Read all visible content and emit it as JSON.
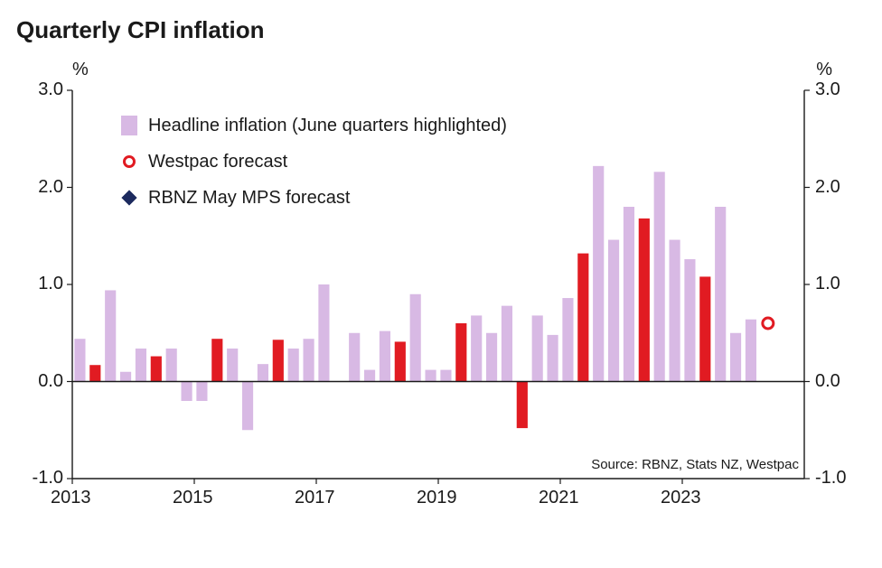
{
  "chart": {
    "title": "Quarterly CPI inflation",
    "ylabel_left": "%",
    "ylabel_right": "%",
    "ylim": [
      -1.0,
      3.0
    ],
    "yticks": [
      -1.0,
      0.0,
      1.0,
      2.0,
      3.0
    ],
    "ytick_labels": [
      "-1.0",
      "0.0",
      "1.0",
      "2.0",
      "3.0"
    ],
    "x_major_ticks": [
      2013,
      2015,
      2017,
      2019,
      2021,
      2023
    ],
    "x_range": [
      2013,
      2025
    ],
    "bar_color_normal": "#d8b9e4",
    "bar_color_highlight": "#e11b22",
    "westpac_stroke": "#e11b22",
    "westpac_fill": "#ffffff",
    "rbnz_fill": "#1c2a5e",
    "axis_color": "#1a1a1a",
    "tick_color": "#1a1a1a",
    "title_fontsize": 26,
    "tick_fontsize": 20,
    "legend_fontsize": 20,
    "bars": [
      {
        "x": 2013.0,
        "v": 0.44,
        "hl": false
      },
      {
        "x": 2013.25,
        "v": 0.17,
        "hl": true
      },
      {
        "x": 2013.5,
        "v": 0.94,
        "hl": false
      },
      {
        "x": 2013.75,
        "v": 0.1,
        "hl": false
      },
      {
        "x": 2014.0,
        "v": 0.34,
        "hl": false
      },
      {
        "x": 2014.25,
        "v": 0.26,
        "hl": true
      },
      {
        "x": 2014.5,
        "v": 0.34,
        "hl": false
      },
      {
        "x": 2014.75,
        "v": -0.2,
        "hl": false
      },
      {
        "x": 2015.0,
        "v": -0.2,
        "hl": false
      },
      {
        "x": 2015.25,
        "v": 0.44,
        "hl": true
      },
      {
        "x": 2015.5,
        "v": 0.34,
        "hl": false
      },
      {
        "x": 2015.75,
        "v": -0.5,
        "hl": false
      },
      {
        "x": 2016.0,
        "v": 0.18,
        "hl": false
      },
      {
        "x": 2016.25,
        "v": 0.43,
        "hl": true
      },
      {
        "x": 2016.5,
        "v": 0.34,
        "hl": false
      },
      {
        "x": 2016.75,
        "v": 0.44,
        "hl": false
      },
      {
        "x": 2017.0,
        "v": 1.0,
        "hl": false
      },
      {
        "x": 2017.25,
        "v": 0.0,
        "hl": true
      },
      {
        "x": 2017.5,
        "v": 0.5,
        "hl": false
      },
      {
        "x": 2017.75,
        "v": 0.12,
        "hl": false
      },
      {
        "x": 2018.0,
        "v": 0.52,
        "hl": false
      },
      {
        "x": 2018.25,
        "v": 0.41,
        "hl": true
      },
      {
        "x": 2018.5,
        "v": 0.9,
        "hl": false
      },
      {
        "x": 2018.75,
        "v": 0.12,
        "hl": false
      },
      {
        "x": 2019.0,
        "v": 0.12,
        "hl": false
      },
      {
        "x": 2019.25,
        "v": 0.6,
        "hl": true
      },
      {
        "x": 2019.5,
        "v": 0.68,
        "hl": false
      },
      {
        "x": 2019.75,
        "v": 0.5,
        "hl": false
      },
      {
        "x": 2020.0,
        "v": 0.78,
        "hl": false
      },
      {
        "x": 2020.25,
        "v": -0.48,
        "hl": true
      },
      {
        "x": 2020.5,
        "v": 0.68,
        "hl": false
      },
      {
        "x": 2020.75,
        "v": 0.48,
        "hl": false
      },
      {
        "x": 2021.0,
        "v": 0.86,
        "hl": false
      },
      {
        "x": 2021.25,
        "v": 1.32,
        "hl": true
      },
      {
        "x": 2021.5,
        "v": 2.22,
        "hl": false
      },
      {
        "x": 2021.75,
        "v": 1.46,
        "hl": false
      },
      {
        "x": 2022.0,
        "v": 1.8,
        "hl": false
      },
      {
        "x": 2022.25,
        "v": 1.68,
        "hl": true
      },
      {
        "x": 2022.5,
        "v": 2.16,
        "hl": false
      },
      {
        "x": 2022.75,
        "v": 1.46,
        "hl": false
      },
      {
        "x": 2023.0,
        "v": 1.26,
        "hl": false
      },
      {
        "x": 2023.25,
        "v": 1.08,
        "hl": true
      },
      {
        "x": 2023.5,
        "v": 1.8,
        "hl": false
      },
      {
        "x": 2023.75,
        "v": 0.5,
        "hl": false
      },
      {
        "x": 2024.0,
        "v": 0.64,
        "hl": false
      }
    ],
    "westpac_point": {
      "x": 2024.28,
      "v": 0.6,
      "r": 6,
      "stroke_w": 3
    },
    "rbnz_point": {
      "x": 2024.28,
      "v": 0.6,
      "s": 10,
      "stroke_w": 1
    },
    "legend": {
      "headline": "Headline inflation (June quarters highlighted)",
      "westpac": "Westpac forecast",
      "rbnz": "RBNZ May MPS forecast"
    },
    "source": "Source: RBNZ, Stats NZ, Westpac"
  }
}
